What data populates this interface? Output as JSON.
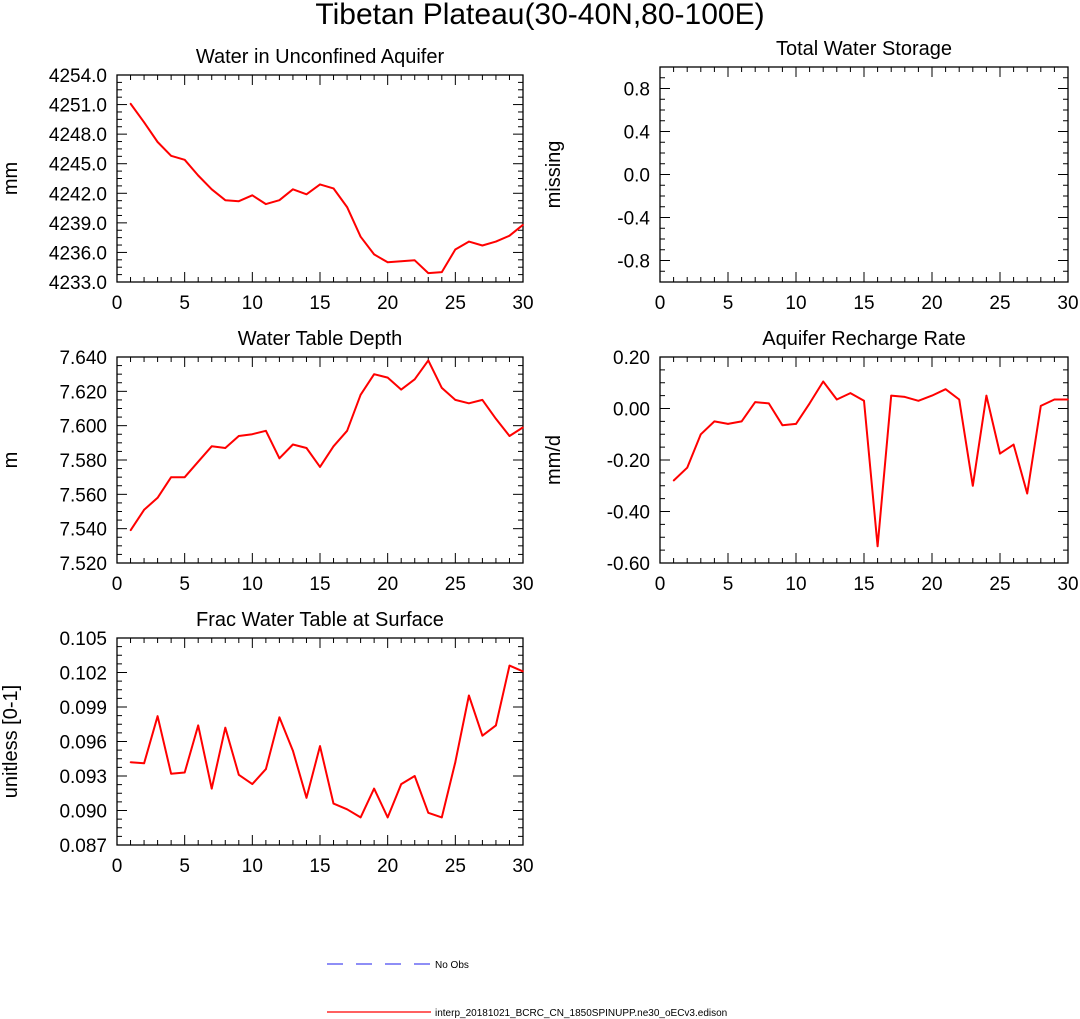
{
  "figure": {
    "title": "Tibetan Plateau(30-40N,80-100E)"
  },
  "colors": {
    "model_line": "#ff0000",
    "obs_line": "#4a4af0",
    "axis": "#000000"
  },
  "legend": {
    "obs_label": "No Obs",
    "model_label": "interp_20181021_BCRC_CN_1850SPINUPP.ne30_oECv3.edison"
  },
  "chart_data": [
    {
      "type": "line",
      "title": "Water in Unconfined Aquifer",
      "ylabel": "mm",
      "xlim": [
        0,
        30
      ],
      "ylim": [
        4233.0,
        4254.0
      ],
      "xticks": [
        "0",
        "5",
        "10",
        "15",
        "20",
        "25",
        "30"
      ],
      "yticks": [
        "4233.0",
        "4236.0",
        "4239.0",
        "4242.0",
        "4245.0",
        "4248.0",
        "4251.0",
        "4254.0"
      ],
      "x": [
        1,
        2,
        3,
        4,
        5,
        6,
        7,
        8,
        9,
        10,
        11,
        12,
        13,
        14,
        15,
        16,
        17,
        18,
        19,
        20,
        21,
        22,
        23,
        24,
        25,
        26,
        27,
        28,
        29,
        30
      ],
      "series": [
        {
          "name": "interp_20181021_BCRC_CN_1850SPINUPP.ne30_oECv3.edison",
          "values": [
            4251.1,
            4249.2,
            4247.2,
            4245.8,
            4245.4,
            4243.8,
            4242.4,
            4241.3,
            4241.2,
            4241.8,
            4240.9,
            4241.3,
            4242.4,
            4241.9,
            4242.9,
            4242.5,
            4240.6,
            4237.6,
            4235.8,
            4235.0,
            4235.1,
            4235.2,
            4233.9,
            4234.0,
            4236.3,
            4237.1,
            4236.7,
            4237.1,
            4237.7,
            4238.8
          ]
        }
      ]
    },
    {
      "type": "line",
      "title": "Total Water Storage",
      "ylabel": "missing",
      "xlim": [
        0,
        30
      ],
      "ylim": [
        -1.0,
        1.0
      ],
      "xticks": [
        "0",
        "5",
        "10",
        "15",
        "20",
        "25",
        "30"
      ],
      "yticks": [
        "-0.8",
        "-0.4",
        "0.0",
        "0.4",
        "0.8"
      ],
      "x": [],
      "series": []
    },
    {
      "type": "line",
      "title": "Water Table Depth",
      "ylabel": "m",
      "xlim": [
        0,
        30
      ],
      "ylim": [
        7.52,
        7.64
      ],
      "xticks": [
        "0",
        "5",
        "10",
        "15",
        "20",
        "25",
        "30"
      ],
      "yticks": [
        "7.520",
        "7.540",
        "7.560",
        "7.580",
        "7.600",
        "7.620",
        "7.640"
      ],
      "x": [
        1,
        2,
        3,
        4,
        5,
        6,
        7,
        8,
        9,
        10,
        11,
        12,
        13,
        14,
        15,
        16,
        17,
        18,
        19,
        20,
        21,
        22,
        23,
        24,
        25,
        26,
        27,
        28,
        29,
        30
      ],
      "series": [
        {
          "name": "interp_20181021_BCRC_CN_1850SPINUPP.ne30_oECv3.edison",
          "values": [
            7.539,
            7.551,
            7.558,
            7.57,
            7.57,
            7.579,
            7.588,
            7.587,
            7.594,
            7.595,
            7.597,
            7.581,
            7.589,
            7.587,
            7.576,
            7.588,
            7.597,
            7.618,
            7.63,
            7.628,
            7.621,
            7.627,
            7.638,
            7.622,
            7.615,
            7.613,
            7.615,
            7.604,
            7.594,
            7.599
          ]
        }
      ]
    },
    {
      "type": "line",
      "title": "Aquifer Recharge Rate",
      "ylabel": "mm/d",
      "xlim": [
        0,
        30
      ],
      "ylim": [
        -0.6,
        0.2
      ],
      "xticks": [
        "0",
        "5",
        "10",
        "15",
        "20",
        "25",
        "30"
      ],
      "yticks": [
        "-0.60",
        "-0.40",
        "-0.20",
        "0.00",
        "0.20"
      ],
      "x": [
        1,
        2,
        3,
        4,
        5,
        6,
        7,
        8,
        9,
        10,
        11,
        12,
        13,
        14,
        15,
        16,
        17,
        18,
        19,
        20,
        21,
        22,
        23,
        24,
        25,
        26,
        27,
        28,
        29,
        30
      ],
      "series": [
        {
          "name": "interp_20181021_BCRC_CN_1850SPINUPP.ne30_oECv3.edison",
          "values": [
            -0.28,
            -0.23,
            -0.1,
            -0.05,
            -0.06,
            -0.05,
            0.025,
            0.02,
            -0.065,
            -0.06,
            0.02,
            0.105,
            0.035,
            0.06,
            0.03,
            -0.535,
            0.05,
            0.045,
            0.03,
            0.05,
            0.075,
            0.035,
            -0.3,
            0.05,
            -0.175,
            -0.14,
            -0.33,
            0.01,
            0.035,
            0.035
          ]
        }
      ]
    },
    {
      "type": "line",
      "title": "Frac Water Table at Surface",
      "ylabel": "unitless [0-1]",
      "xlim": [
        0,
        30
      ],
      "ylim": [
        0.087,
        0.105
      ],
      "xticks": [
        "0",
        "5",
        "10",
        "15",
        "20",
        "25",
        "30"
      ],
      "yticks": [
        "0.087",
        "0.090",
        "0.093",
        "0.096",
        "0.099",
        "0.102",
        "0.105"
      ],
      "x": [
        1,
        2,
        3,
        4,
        5,
        6,
        7,
        8,
        9,
        10,
        11,
        12,
        13,
        14,
        15,
        16,
        17,
        18,
        19,
        20,
        21,
        22,
        23,
        24,
        25,
        26,
        27,
        28,
        29,
        30
      ],
      "series": [
        {
          "name": "interp_20181021_BCRC_CN_1850SPINUPP.ne30_oECv3.edison",
          "values": [
            0.0942,
            0.0941,
            0.0982,
            0.0932,
            0.0933,
            0.0974,
            0.0919,
            0.0972,
            0.0931,
            0.0923,
            0.0936,
            0.0981,
            0.0952,
            0.0911,
            0.0956,
            0.0906,
            0.0901,
            0.0894,
            0.0919,
            0.0894,
            0.0923,
            0.093,
            0.0898,
            0.0894,
            0.0942,
            0.1,
            0.0965,
            0.0974,
            0.1026,
            0.1021
          ]
        }
      ]
    }
  ]
}
